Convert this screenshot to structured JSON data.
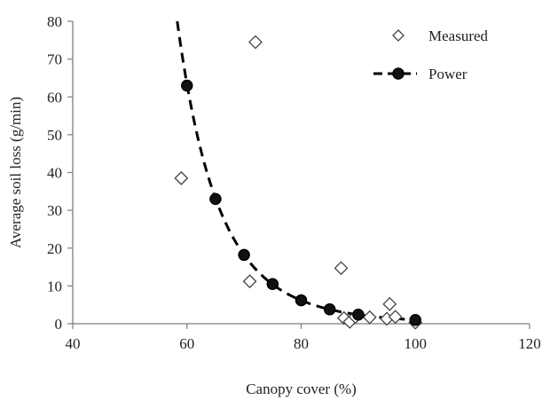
{
  "chart_data": {
    "type": "scatter",
    "title": "",
    "xlabel": "Canopy cover (%)",
    "ylabel": "Average soil loss (g/min)",
    "xlim": [
      40,
      120
    ],
    "ylim": [
      0,
      80
    ],
    "x_ticks": [
      40,
      60,
      80,
      100,
      120
    ],
    "y_ticks": [
      0,
      10,
      20,
      30,
      40,
      50,
      60,
      70,
      80
    ],
    "grid": false,
    "legend_position": "top-right",
    "series": [
      {
        "name": "Measured",
        "marker": "diamond-open",
        "points": [
          {
            "x": 59,
            "y": 38.5
          },
          {
            "x": 72,
            "y": 74.5
          },
          {
            "x": 71,
            "y": 11.2
          },
          {
            "x": 87,
            "y": 14.7
          },
          {
            "x": 87.5,
            "y": 1.5
          },
          {
            "x": 88.5,
            "y": 0.5
          },
          {
            "x": 89.5,
            "y": 1.8
          },
          {
            "x": 92,
            "y": 1.7
          },
          {
            "x": 95,
            "y": 1.3
          },
          {
            "x": 95.5,
            "y": 5.2
          },
          {
            "x": 96.5,
            "y": 1.8
          },
          {
            "x": 100,
            "y": 0.3
          }
        ]
      },
      {
        "name": "Power",
        "marker": "filled-circle",
        "line_style": "dashed",
        "points": [
          {
            "x": 60,
            "y": 63
          },
          {
            "x": 65,
            "y": 33
          },
          {
            "x": 70,
            "y": 18.2
          },
          {
            "x": 75,
            "y": 10.5
          },
          {
            "x": 80,
            "y": 6.2
          },
          {
            "x": 85,
            "y": 3.8
          },
          {
            "x": 90,
            "y": 2.4
          },
          {
            "x": 100,
            "y": 1.0
          }
        ]
      }
    ],
    "colors": {
      "measured": "#444444",
      "power": "#111111",
      "axis": "#7f7f7f"
    }
  }
}
